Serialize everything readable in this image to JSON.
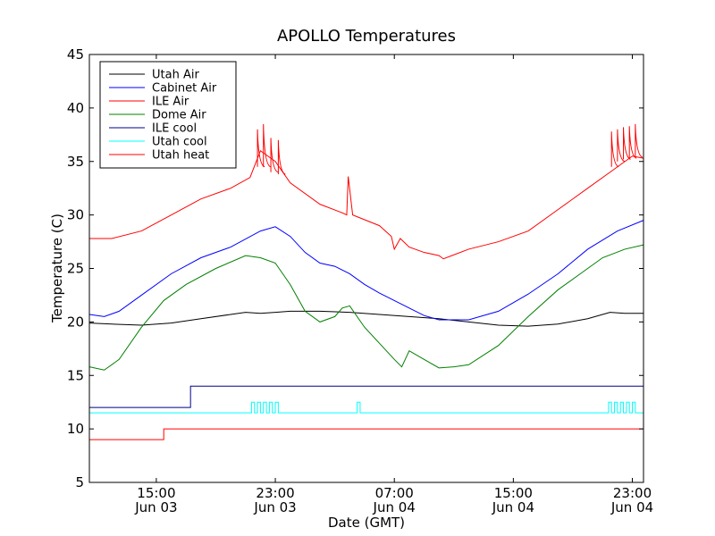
{
  "chart_data": {
    "type": "line",
    "title": "APOLLO Temperatures",
    "xlabel": "Date (GMT)",
    "ylabel": "Temperature (C)",
    "xlim": [
      10.5,
      47.75
    ],
    "ylim": [
      5,
      45
    ],
    "grid": false,
    "legend_position": "top-left",
    "y_ticks": [
      5,
      10,
      15,
      20,
      25,
      30,
      35,
      40,
      45
    ],
    "x_ticks": [
      {
        "x": 15,
        "time": "15:00",
        "date": "Jun 03"
      },
      {
        "x": 23,
        "time": "23:00",
        "date": "Jun 03"
      },
      {
        "x": 31,
        "time": "07:00",
        "date": "Jun 04"
      },
      {
        "x": 39,
        "time": "15:00",
        "date": "Jun 04"
      },
      {
        "x": 47,
        "time": "23:00",
        "date": "Jun 04"
      }
    ],
    "series": [
      {
        "name": "Utah Air",
        "color": "#000000",
        "x": [
          10.5,
          12,
          14,
          16,
          18,
          20,
          21,
          22,
          23,
          24,
          26,
          28,
          30,
          32,
          34,
          36,
          38,
          40,
          42,
          44,
          45.5,
          46.5,
          47.75
        ],
        "y": [
          19.9,
          19.8,
          19.7,
          19.9,
          20.3,
          20.7,
          20.9,
          20.8,
          20.9,
          21.0,
          21.0,
          20.9,
          20.7,
          20.5,
          20.3,
          20.0,
          19.7,
          19.6,
          19.8,
          20.3,
          20.9,
          20.8,
          20.8
        ]
      },
      {
        "name": "Cabinet Air",
        "color": "#0000ff",
        "x": [
          10.5,
          11.5,
          12.5,
          14,
          16,
          18,
          20,
          22,
          23,
          24,
          25,
          26,
          27,
          28,
          29,
          30,
          31,
          32,
          33,
          34,
          36,
          38,
          40,
          42,
          44,
          46,
          47.75
        ],
        "y": [
          20.7,
          20.5,
          21.0,
          22.5,
          24.5,
          26.0,
          27.0,
          28.5,
          28.9,
          28.0,
          26.5,
          25.5,
          25.2,
          24.5,
          23.5,
          22.7,
          22.0,
          21.3,
          20.6,
          20.2,
          20.2,
          21.0,
          22.6,
          24.5,
          26.8,
          28.5,
          29.5
        ]
      },
      {
        "name": "ILE Air",
        "color": "#ff0000",
        "x": [
          10.5,
          12,
          14,
          16,
          18,
          20,
          21.3,
          22,
          23,
          24,
          26,
          27.5,
          27.8,
          27.9,
          28.2,
          30,
          30.8,
          31,
          31.4,
          32,
          33,
          34,
          34.3,
          36,
          38,
          40,
          42,
          44,
          45.5,
          47,
          47.75
        ],
        "y": [
          27.8,
          27.8,
          28.5,
          30.0,
          31.5,
          32.5,
          33.5,
          36.0,
          35.0,
          33.0,
          31.0,
          30.2,
          30.0,
          33.6,
          30.0,
          29.0,
          28.0,
          26.8,
          27.8,
          27.0,
          26.5,
          26.2,
          25.9,
          26.8,
          27.5,
          28.5,
          30.5,
          32.5,
          34.0,
          35.5,
          35.3
        ]
      },
      {
        "name": "Dome Air",
        "color": "#008000",
        "x": [
          10.5,
          11.5,
          12.5,
          14,
          15.5,
          17,
          19,
          21,
          22,
          23,
          24,
          25,
          26,
          27,
          27.5,
          28,
          29,
          30,
          31,
          31.5,
          32,
          33,
          34,
          35,
          36,
          38,
          40,
          42,
          43.5,
          45,
          46.5,
          47.75
        ],
        "y": [
          15.8,
          15.5,
          16.5,
          19.5,
          22.0,
          23.5,
          25.0,
          26.2,
          26.0,
          25.5,
          23.5,
          21.0,
          20.0,
          20.5,
          21.3,
          21.5,
          19.5,
          18.0,
          16.5,
          15.8,
          17.3,
          16.5,
          15.7,
          15.8,
          16.0,
          17.8,
          20.5,
          23.0,
          24.5,
          26.0,
          26.8,
          27.2
        ]
      },
      {
        "name": "ILE cool",
        "color": "#00008b",
        "x": [
          10.5,
          17.3,
          17.3,
          47.75
        ],
        "y": [
          12.0,
          12.0,
          14.0,
          14.0
        ]
      },
      {
        "name": "Utah cool",
        "color": "#00ffff",
        "x": [
          10.5,
          21.4,
          21.4,
          21.6,
          21.6,
          21.8,
          21.8,
          22.0,
          22.0,
          22.2,
          22.2,
          22.4,
          22.4,
          22.6,
          22.6,
          22.8,
          22.8,
          23.0,
          23.0,
          23.2,
          23.2,
          23.4,
          23.4,
          28.5,
          28.5,
          28.7,
          28.7,
          45.4,
          45.4,
          45.6,
          45.6,
          45.8,
          45.8,
          46.0,
          46.0,
          46.2,
          46.2,
          46.4,
          46.4,
          46.6,
          46.6,
          46.8,
          46.8,
          47.0,
          47.0,
          47.2,
          47.2,
          47.75
        ],
        "y": [
          11.5,
          11.5,
          12.5,
          12.5,
          11.5,
          11.5,
          12.5,
          12.5,
          11.5,
          11.5,
          12.5,
          12.5,
          11.5,
          11.5,
          12.5,
          12.5,
          11.5,
          11.5,
          12.5,
          12.5,
          11.5,
          11.5,
          11.5,
          11.5,
          12.5,
          12.5,
          11.5,
          11.5,
          12.5,
          12.5,
          11.5,
          11.5,
          12.5,
          12.5,
          11.5,
          11.5,
          12.5,
          12.5,
          11.5,
          11.5,
          12.5,
          12.5,
          11.5,
          11.5,
          12.5,
          12.5,
          11.5,
          11.5
        ]
      },
      {
        "name": "Utah heat",
        "color": "#ff0000",
        "x": [
          10.5,
          15.5,
          15.5,
          47.75
        ],
        "y": [
          9.0,
          9.0,
          10.0,
          10.0
        ]
      }
    ],
    "annotations": [
      {
        "series": "ILE Air",
        "description": "heater spikes",
        "spikes": [
          {
            "x": 21.8,
            "base": 34.5,
            "peak": 38.0
          },
          {
            "x": 22.2,
            "base": 34.5,
            "peak": 38.5
          },
          {
            "x": 22.7,
            "base": 34.0,
            "peak": 37.2
          },
          {
            "x": 23.2,
            "base": 33.8,
            "peak": 37.0
          },
          {
            "x": 45.6,
            "base": 34.5,
            "peak": 37.8
          },
          {
            "x": 46.0,
            "base": 35.0,
            "peak": 38.0
          },
          {
            "x": 46.4,
            "base": 35.2,
            "peak": 38.2
          },
          {
            "x": 46.8,
            "base": 35.3,
            "peak": 38.3
          },
          {
            "x": 47.2,
            "base": 35.4,
            "peak": 38.5
          }
        ]
      }
    ]
  }
}
